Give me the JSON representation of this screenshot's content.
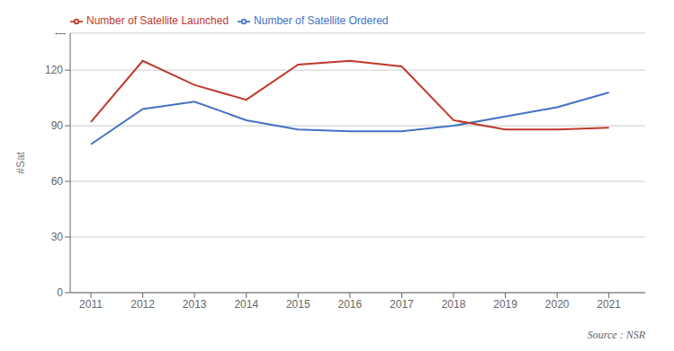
{
  "chart_data": {
    "type": "line",
    "x": [
      2011,
      2012,
      2013,
      2014,
      2015,
      2016,
      2017,
      2018,
      2019,
      2020,
      2021
    ],
    "series": [
      {
        "name": "Number of Satellite Ordered",
        "color": "#4472C4",
        "values": [
          80,
          99,
          103,
          93,
          88,
          87,
          87,
          90,
          95,
          100,
          108
        ]
      },
      {
        "name": "Number of Satellite Launched",
        "color": "#C0392B",
        "values": [
          92,
          125,
          112,
          104,
          123,
          125,
          122,
          93,
          88,
          88,
          89
        ]
      }
    ],
    "ylabel": "#Sat",
    "xlim": [
      2010.6,
      2021.7
    ],
    "xticks": [
      2011,
      2012,
      2013,
      2014,
      2015,
      2016,
      2017,
      2018,
      2019,
      2020,
      2021
    ],
    "ylim": [
      0,
      140
    ],
    "yticks": [
      0,
      30,
      60,
      90,
      120
    ],
    "grid": true,
    "legend": "upper left",
    "annotations": [
      "---",
      "Source : NSR"
    ]
  }
}
